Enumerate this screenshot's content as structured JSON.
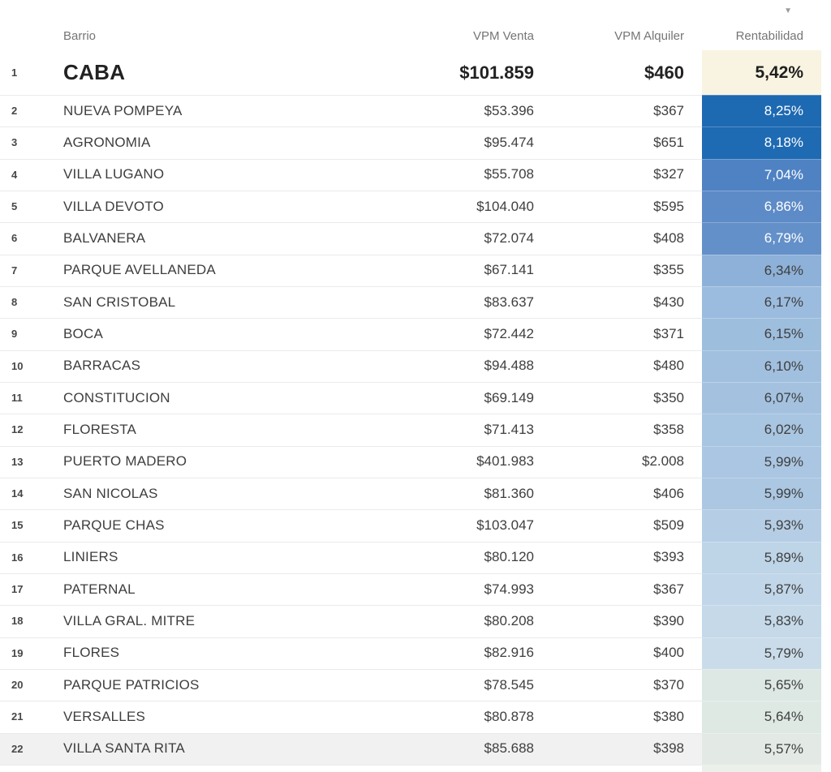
{
  "header": {
    "barrio": "Barrio",
    "vpm_venta": "VPM Venta",
    "vpm_alquiler": "VPM Alquiler",
    "rentabilidad": "Rentabilidad",
    "sort_icon": "▼"
  },
  "colors": {
    "header_text": "#757575",
    "body_text": "#3e3e3e",
    "hero_text": "#222222",
    "row_divider": "#eaeaea",
    "highlight_row_bg": "#f1f1f1",
    "scale_dark_blue": "#1d69b2",
    "scale_pale_green": "#e3eae5",
    "hero_rent_bg": "#f8f4e1",
    "partial_cell_bg": "#ecf0ea"
  },
  "table": {
    "rows": [
      {
        "rank": "1",
        "barrio": "CABA",
        "venta": "$101.859",
        "alquiler": "$460",
        "rent": "5,42%",
        "rent_bg": "#f8f4e1",
        "rent_fg": "#1f1f1f",
        "hero": true,
        "highlight": false
      },
      {
        "rank": "2",
        "barrio": "NUEVA POMPEYA",
        "venta": "$53.396",
        "alquiler": "$367",
        "rent": "8,25%",
        "rent_bg": "#1d69b2",
        "rent_fg": "#ffffff",
        "hero": false,
        "highlight": false
      },
      {
        "rank": "3",
        "barrio": "AGRONOMIA",
        "venta": "$95.474",
        "alquiler": "$651",
        "rent": "8,18%",
        "rent_bg": "#1e6ab3",
        "rent_fg": "#ffffff",
        "hero": false,
        "highlight": false
      },
      {
        "rank": "4",
        "barrio": "VILLA LUGANO",
        "venta": "$55.708",
        "alquiler": "$327",
        "rent": "7,04%",
        "rent_bg": "#4f82c3",
        "rent_fg": "#ffffff",
        "hero": false,
        "highlight": false
      },
      {
        "rank": "5",
        "barrio": "VILLA DEVOTO",
        "venta": "$104.040",
        "alquiler": "$595",
        "rent": "6,86%",
        "rent_bg": "#5d8bc7",
        "rent_fg": "#ffffff",
        "hero": false,
        "highlight": false
      },
      {
        "rank": "6",
        "barrio": "BALVANERA",
        "venta": "$72.074",
        "alquiler": "$408",
        "rent": "6,79%",
        "rent_bg": "#6390c9",
        "rent_fg": "#ffffff",
        "hero": false,
        "highlight": false
      },
      {
        "rank": "7",
        "barrio": "PARQUE AVELLANEDA",
        "venta": "$67.141",
        "alquiler": "$355",
        "rent": "6,34%",
        "rent_bg": "#8db1d8",
        "rent_fg": "#3e3e3e",
        "hero": false,
        "highlight": false
      },
      {
        "rank": "8",
        "barrio": "SAN CRISTOBAL",
        "venta": "$83.637",
        "alquiler": "$430",
        "rent": "6,17%",
        "rent_bg": "#9cbcdf",
        "rent_fg": "#3e3e3e",
        "hero": false,
        "highlight": false
      },
      {
        "rank": "9",
        "barrio": "BOCA",
        "venta": "$72.442",
        "alquiler": "$371",
        "rent": "6,15%",
        "rent_bg": "#9ebede",
        "rent_fg": "#3e3e3e",
        "hero": false,
        "highlight": false
      },
      {
        "rank": "10",
        "barrio": "BARRACAS",
        "venta": "$94.488",
        "alquiler": "$480",
        "rent": "6,10%",
        "rent_bg": "#a1c0df",
        "rent_fg": "#3e3e3e",
        "hero": false,
        "highlight": false
      },
      {
        "rank": "11",
        "barrio": "CONSTITUCION",
        "venta": "$69.149",
        "alquiler": "$350",
        "rent": "6,07%",
        "rent_bg": "#a4c2e0",
        "rent_fg": "#3e3e3e",
        "hero": false,
        "highlight": false
      },
      {
        "rank": "12",
        "barrio": "FLORESTA",
        "venta": "$71.413",
        "alquiler": "$358",
        "rent": "6,02%",
        "rent_bg": "#a8c5e1",
        "rent_fg": "#3e3e3e",
        "hero": false,
        "highlight": false
      },
      {
        "rank": "13",
        "barrio": "PUERTO MADERO",
        "venta": "$401.983",
        "alquiler": "$2.008",
        "rent": "5,99%",
        "rent_bg": "#aac6e2",
        "rent_fg": "#3e3e3e",
        "hero": false,
        "highlight": false
      },
      {
        "rank": "14",
        "barrio": "SAN NICOLAS",
        "venta": "$81.360",
        "alquiler": "$406",
        "rent": "5,99%",
        "rent_bg": "#abc7e2",
        "rent_fg": "#3e3e3e",
        "hero": false,
        "highlight": false
      },
      {
        "rank": "15",
        "barrio": "PARQUE CHAS",
        "venta": "$103.047",
        "alquiler": "$509",
        "rent": "5,93%",
        "rent_bg": "#b5cde5",
        "rent_fg": "#3e3e3e",
        "hero": false,
        "highlight": false
      },
      {
        "rank": "16",
        "barrio": "LINIERS",
        "venta": "$80.120",
        "alquiler": "$393",
        "rent": "5,89%",
        "rent_bg": "#bed4e7",
        "rent_fg": "#3e3e3e",
        "hero": false,
        "highlight": false
      },
      {
        "rank": "17",
        "barrio": "PATERNAL",
        "venta": "$74.993",
        "alquiler": "$367",
        "rent": "5,87%",
        "rent_bg": "#c1d6e8",
        "rent_fg": "#3e3e3e",
        "hero": false,
        "highlight": false
      },
      {
        "rank": "18",
        "barrio": "VILLA GRAL. MITRE",
        "venta": "$80.208",
        "alquiler": "$390",
        "rent": "5,83%",
        "rent_bg": "#c5d9e9",
        "rent_fg": "#3e3e3e",
        "hero": false,
        "highlight": false
      },
      {
        "rank": "19",
        "barrio": "FLORES",
        "venta": "$82.916",
        "alquiler": "$400",
        "rent": "5,79%",
        "rent_bg": "#cadcea",
        "rent_fg": "#3e3e3e",
        "hero": false,
        "highlight": false
      },
      {
        "rank": "20",
        "barrio": "PARQUE PATRICIOS",
        "venta": "$78.545",
        "alquiler": "$370",
        "rent": "5,65%",
        "rent_bg": "#dde7e4",
        "rent_fg": "#3e3e3e",
        "hero": false,
        "highlight": false
      },
      {
        "rank": "21",
        "barrio": "VERSALLES",
        "venta": "$80.878",
        "alquiler": "$380",
        "rent": "5,64%",
        "rent_bg": "#dfe9e4",
        "rent_fg": "#3e3e3e",
        "hero": false,
        "highlight": false
      },
      {
        "rank": "22",
        "barrio": "VILLA SANTA RITA",
        "venta": "$85.688",
        "alquiler": "$398",
        "rent": "5,57%",
        "rent_bg": "#e3eae5",
        "rent_fg": "#3e3e3e",
        "hero": false,
        "highlight": true
      }
    ],
    "partial_row": {
      "rent_bg": "#ecf0ea"
    }
  },
  "chart_data": {
    "type": "table",
    "title": "",
    "columns": [
      "Barrio",
      "VPM Venta",
      "VPM Alquiler",
      "Rentabilidad"
    ],
    "sorted_by": "Rentabilidad",
    "sort_direction": "desc",
    "rows": [
      {
        "rank": 1,
        "barrio": "CABA",
        "vpm_venta": 101859,
        "vpm_alquiler": 460,
        "rentabilidad_pct": 5.42
      },
      {
        "rank": 2,
        "barrio": "NUEVA POMPEYA",
        "vpm_venta": 53396,
        "vpm_alquiler": 367,
        "rentabilidad_pct": 8.25
      },
      {
        "rank": 3,
        "barrio": "AGRONOMIA",
        "vpm_venta": 95474,
        "vpm_alquiler": 651,
        "rentabilidad_pct": 8.18
      },
      {
        "rank": 4,
        "barrio": "VILLA LUGANO",
        "vpm_venta": 55708,
        "vpm_alquiler": 327,
        "rentabilidad_pct": 7.04
      },
      {
        "rank": 5,
        "barrio": "VILLA DEVOTO",
        "vpm_venta": 104040,
        "vpm_alquiler": 595,
        "rentabilidad_pct": 6.86
      },
      {
        "rank": 6,
        "barrio": "BALVANERA",
        "vpm_venta": 72074,
        "vpm_alquiler": 408,
        "rentabilidad_pct": 6.79
      },
      {
        "rank": 7,
        "barrio": "PARQUE AVELLANEDA",
        "vpm_venta": 67141,
        "vpm_alquiler": 355,
        "rentabilidad_pct": 6.34
      },
      {
        "rank": 8,
        "barrio": "SAN CRISTOBAL",
        "vpm_venta": 83637,
        "vpm_alquiler": 430,
        "rentabilidad_pct": 6.17
      },
      {
        "rank": 9,
        "barrio": "BOCA",
        "vpm_venta": 72442,
        "vpm_alquiler": 371,
        "rentabilidad_pct": 6.15
      },
      {
        "rank": 10,
        "barrio": "BARRACAS",
        "vpm_venta": 94488,
        "vpm_alquiler": 480,
        "rentabilidad_pct": 6.1
      },
      {
        "rank": 11,
        "barrio": "CONSTITUCION",
        "vpm_venta": 69149,
        "vpm_alquiler": 350,
        "rentabilidad_pct": 6.07
      },
      {
        "rank": 12,
        "barrio": "FLORESTA",
        "vpm_venta": 71413,
        "vpm_alquiler": 358,
        "rentabilidad_pct": 6.02
      },
      {
        "rank": 13,
        "barrio": "PUERTO MADERO",
        "vpm_venta": 401983,
        "vpm_alquiler": 2008,
        "rentabilidad_pct": 5.99
      },
      {
        "rank": 14,
        "barrio": "SAN NICOLAS",
        "vpm_venta": 81360,
        "vpm_alquiler": 406,
        "rentabilidad_pct": 5.99
      },
      {
        "rank": 15,
        "barrio": "PARQUE CHAS",
        "vpm_venta": 103047,
        "vpm_alquiler": 509,
        "rentabilidad_pct": 5.93
      },
      {
        "rank": 16,
        "barrio": "LINIERS",
        "vpm_venta": 80120,
        "vpm_alquiler": 393,
        "rentabilidad_pct": 5.89
      },
      {
        "rank": 17,
        "barrio": "PATERNAL",
        "vpm_venta": 74993,
        "vpm_alquiler": 367,
        "rentabilidad_pct": 5.87
      },
      {
        "rank": 18,
        "barrio": "VILLA GRAL. MITRE",
        "vpm_venta": 80208,
        "vpm_alquiler": 390,
        "rentabilidad_pct": 5.83
      },
      {
        "rank": 19,
        "barrio": "FLORES",
        "vpm_venta": 82916,
        "vpm_alquiler": 400,
        "rentabilidad_pct": 5.79
      },
      {
        "rank": 20,
        "barrio": "PARQUE PATRICIOS",
        "vpm_venta": 78545,
        "vpm_alquiler": 370,
        "rentabilidad_pct": 5.65
      },
      {
        "rank": 21,
        "barrio": "VERSALLES",
        "vpm_venta": 80878,
        "vpm_alquiler": 380,
        "rentabilidad_pct": 5.64
      },
      {
        "rank": 22,
        "barrio": "VILLA SANTA RITA",
        "vpm_venta": 85688,
        "vpm_alquiler": 398,
        "rentabilidad_pct": 5.57
      }
    ],
    "layout_hints": {
      "rentabilidad_color_scale": "dark blue (high) to pale green (low)",
      "first_row_emphasized": true,
      "grid": "light horizontal dividers"
    }
  }
}
